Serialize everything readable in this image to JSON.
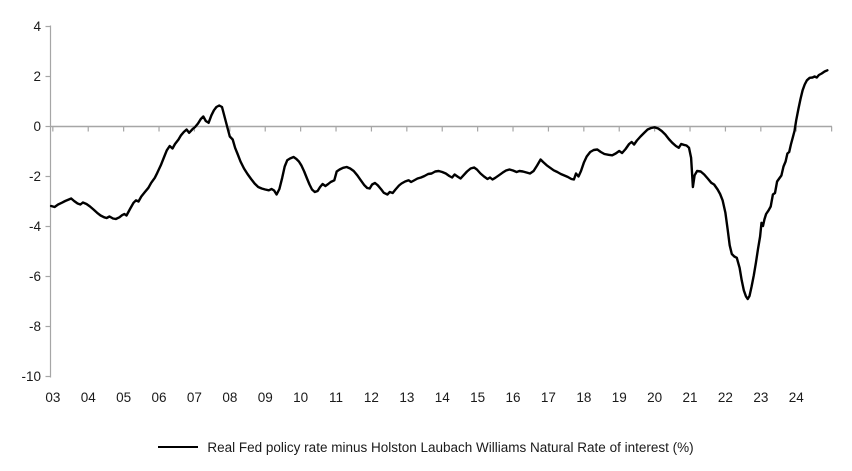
{
  "chart_data": {
    "type": "line",
    "title": "",
    "xlabel": "",
    "ylabel": "",
    "ylim": [
      -10,
      4
    ],
    "ytick_step": 2,
    "yticks": [
      "4",
      "2",
      "0",
      "-2",
      "-4",
      "-6",
      "-8",
      "-10"
    ],
    "ytick_values": [
      4,
      2,
      0,
      -2,
      -4,
      -6,
      -8,
      -10
    ],
    "xticks": [
      "03",
      "04",
      "05",
      "06",
      "07",
      "08",
      "09",
      "10",
      "11",
      "12",
      "13",
      "14",
      "15",
      "16",
      "17",
      "18",
      "19",
      "20",
      "21",
      "22",
      "23",
      "24"
    ],
    "xtick_years": [
      2003,
      2004,
      2005,
      2006,
      2007,
      2008,
      2009,
      2010,
      2011,
      2012,
      2013,
      2014,
      2015,
      2016,
      2017,
      2018,
      2019,
      2020,
      2021,
      2022,
      2023,
      2024
    ],
    "grid": false,
    "zero_line": true,
    "legend_position": "bottom",
    "colors": {
      "series": "#000000",
      "axis": "#a6a6a6",
      "zero_line": "#a6a6a6",
      "tick_label": "#1a1a1a",
      "background": "#ffffff"
    },
    "series": [
      {
        "name": "Real Fed policy rate minus Holston Laubach Williams Natural Rate of interest (%)",
        "points": [
          [
            2002.95,
            -3.18
          ],
          [
            2003.05,
            -3.22
          ],
          [
            2003.15,
            -3.12
          ],
          [
            2003.25,
            -3.05
          ],
          [
            2003.35,
            -2.98
          ],
          [
            2003.45,
            -2.92
          ],
          [
            2003.52,
            -2.88
          ],
          [
            2003.6,
            -2.98
          ],
          [
            2003.7,
            -3.08
          ],
          [
            2003.78,
            -3.12
          ],
          [
            2003.85,
            -3.04
          ],
          [
            2003.95,
            -3.1
          ],
          [
            2004.05,
            -3.2
          ],
          [
            2004.15,
            -3.32
          ],
          [
            2004.25,
            -3.45
          ],
          [
            2004.35,
            -3.56
          ],
          [
            2004.45,
            -3.63
          ],
          [
            2004.52,
            -3.66
          ],
          [
            2004.6,
            -3.6
          ],
          [
            2004.7,
            -3.68
          ],
          [
            2004.78,
            -3.7
          ],
          [
            2004.88,
            -3.63
          ],
          [
            2004.95,
            -3.55
          ],
          [
            2005.02,
            -3.5
          ],
          [
            2005.08,
            -3.56
          ],
          [
            2005.18,
            -3.3
          ],
          [
            2005.28,
            -3.05
          ],
          [
            2005.35,
            -2.95
          ],
          [
            2005.42,
            -3.0
          ],
          [
            2005.5,
            -2.8
          ],
          [
            2005.6,
            -2.62
          ],
          [
            2005.7,
            -2.45
          ],
          [
            2005.78,
            -2.25
          ],
          [
            2005.88,
            -2.05
          ],
          [
            2005.95,
            -1.85
          ],
          [
            2006.05,
            -1.55
          ],
          [
            2006.15,
            -1.2
          ],
          [
            2006.22,
            -0.95
          ],
          [
            2006.3,
            -0.78
          ],
          [
            2006.38,
            -0.88
          ],
          [
            2006.45,
            -0.7
          ],
          [
            2006.55,
            -0.52
          ],
          [
            2006.62,
            -0.35
          ],
          [
            2006.7,
            -0.22
          ],
          [
            2006.78,
            -0.12
          ],
          [
            2006.85,
            -0.25
          ],
          [
            2006.95,
            -0.1
          ],
          [
            2007.02,
            -0.02
          ],
          [
            2007.1,
            0.12
          ],
          [
            2007.18,
            0.3
          ],
          [
            2007.25,
            0.4
          ],
          [
            2007.32,
            0.22
          ],
          [
            2007.4,
            0.15
          ],
          [
            2007.48,
            0.45
          ],
          [
            2007.55,
            0.65
          ],
          [
            2007.62,
            0.78
          ],
          [
            2007.7,
            0.84
          ],
          [
            2007.78,
            0.78
          ],
          [
            2007.85,
            0.4
          ],
          [
            2007.92,
            0.02
          ],
          [
            2008.0,
            -0.4
          ],
          [
            2008.08,
            -0.52
          ],
          [
            2008.15,
            -0.85
          ],
          [
            2008.22,
            -1.1
          ],
          [
            2008.3,
            -1.4
          ],
          [
            2008.4,
            -1.68
          ],
          [
            2008.5,
            -1.9
          ],
          [
            2008.6,
            -2.1
          ],
          [
            2008.7,
            -2.28
          ],
          [
            2008.8,
            -2.42
          ],
          [
            2008.9,
            -2.48
          ],
          [
            2009.0,
            -2.52
          ],
          [
            2009.1,
            -2.55
          ],
          [
            2009.18,
            -2.5
          ],
          [
            2009.25,
            -2.56
          ],
          [
            2009.32,
            -2.72
          ],
          [
            2009.4,
            -2.5
          ],
          [
            2009.48,
            -2.05
          ],
          [
            2009.55,
            -1.6
          ],
          [
            2009.62,
            -1.35
          ],
          [
            2009.7,
            -1.28
          ],
          [
            2009.8,
            -1.22
          ],
          [
            2009.88,
            -1.3
          ],
          [
            2009.95,
            -1.4
          ],
          [
            2010.02,
            -1.55
          ],
          [
            2010.1,
            -1.8
          ],
          [
            2010.18,
            -2.08
          ],
          [
            2010.25,
            -2.32
          ],
          [
            2010.32,
            -2.52
          ],
          [
            2010.4,
            -2.62
          ],
          [
            2010.48,
            -2.58
          ],
          [
            2010.55,
            -2.42
          ],
          [
            2010.62,
            -2.3
          ],
          [
            2010.7,
            -2.38
          ],
          [
            2010.78,
            -2.3
          ],
          [
            2010.85,
            -2.22
          ],
          [
            2010.95,
            -2.15
          ],
          [
            2011.02,
            -1.8
          ],
          [
            2011.1,
            -1.72
          ],
          [
            2011.2,
            -1.65
          ],
          [
            2011.3,
            -1.62
          ],
          [
            2011.4,
            -1.68
          ],
          [
            2011.5,
            -1.78
          ],
          [
            2011.6,
            -1.95
          ],
          [
            2011.7,
            -2.15
          ],
          [
            2011.8,
            -2.35
          ],
          [
            2011.88,
            -2.46
          ],
          [
            2011.95,
            -2.48
          ],
          [
            2012.02,
            -2.32
          ],
          [
            2012.1,
            -2.26
          ],
          [
            2012.18,
            -2.35
          ],
          [
            2012.28,
            -2.52
          ],
          [
            2012.35,
            -2.65
          ],
          [
            2012.45,
            -2.72
          ],
          [
            2012.52,
            -2.62
          ],
          [
            2012.6,
            -2.66
          ],
          [
            2012.68,
            -2.52
          ],
          [
            2012.78,
            -2.36
          ],
          [
            2012.85,
            -2.28
          ],
          [
            2012.95,
            -2.2
          ],
          [
            2013.05,
            -2.15
          ],
          [
            2013.12,
            -2.22
          ],
          [
            2013.2,
            -2.16
          ],
          [
            2013.3,
            -2.08
          ],
          [
            2013.4,
            -2.04
          ],
          [
            2013.5,
            -1.98
          ],
          [
            2013.6,
            -1.9
          ],
          [
            2013.7,
            -1.88
          ],
          [
            2013.8,
            -1.8
          ],
          [
            2013.9,
            -1.78
          ],
          [
            2014.0,
            -1.82
          ],
          [
            2014.1,
            -1.88
          ],
          [
            2014.2,
            -1.98
          ],
          [
            2014.28,
            -2.04
          ],
          [
            2014.35,
            -1.92
          ],
          [
            2014.45,
            -2.02
          ],
          [
            2014.52,
            -2.08
          ],
          [
            2014.6,
            -1.95
          ],
          [
            2014.7,
            -1.8
          ],
          [
            2014.8,
            -1.68
          ],
          [
            2014.9,
            -1.64
          ],
          [
            2014.98,
            -1.72
          ],
          [
            2015.08,
            -1.88
          ],
          [
            2015.18,
            -2.0
          ],
          [
            2015.28,
            -2.1
          ],
          [
            2015.35,
            -2.04
          ],
          [
            2015.42,
            -2.12
          ],
          [
            2015.5,
            -2.05
          ],
          [
            2015.6,
            -1.95
          ],
          [
            2015.7,
            -1.85
          ],
          [
            2015.8,
            -1.76
          ],
          [
            2015.9,
            -1.72
          ],
          [
            2016.0,
            -1.76
          ],
          [
            2016.1,
            -1.82
          ],
          [
            2016.18,
            -1.78
          ],
          [
            2016.28,
            -1.8
          ],
          [
            2016.38,
            -1.84
          ],
          [
            2016.48,
            -1.88
          ],
          [
            2016.58,
            -1.78
          ],
          [
            2016.68,
            -1.56
          ],
          [
            2016.78,
            -1.32
          ],
          [
            2016.85,
            -1.42
          ],
          [
            2016.95,
            -1.55
          ],
          [
            2017.05,
            -1.65
          ],
          [
            2017.15,
            -1.75
          ],
          [
            2017.25,
            -1.82
          ],
          [
            2017.35,
            -1.9
          ],
          [
            2017.45,
            -1.96
          ],
          [
            2017.55,
            -2.02
          ],
          [
            2017.65,
            -2.1
          ],
          [
            2017.72,
            -2.12
          ],
          [
            2017.78,
            -1.88
          ],
          [
            2017.85,
            -2.0
          ],
          [
            2017.92,
            -1.78
          ],
          [
            2018.0,
            -1.45
          ],
          [
            2018.08,
            -1.2
          ],
          [
            2018.18,
            -1.02
          ],
          [
            2018.28,
            -0.94
          ],
          [
            2018.38,
            -0.92
          ],
          [
            2018.48,
            -1.02
          ],
          [
            2018.58,
            -1.1
          ],
          [
            2018.7,
            -1.13
          ],
          [
            2018.8,
            -1.15
          ],
          [
            2018.9,
            -1.08
          ],
          [
            2019.0,
            -0.98
          ],
          [
            2019.08,
            -1.06
          ],
          [
            2019.18,
            -0.9
          ],
          [
            2019.28,
            -0.7
          ],
          [
            2019.35,
            -0.62
          ],
          [
            2019.42,
            -0.72
          ],
          [
            2019.5,
            -0.56
          ],
          [
            2019.6,
            -0.4
          ],
          [
            2019.7,
            -0.26
          ],
          [
            2019.8,
            -0.12
          ],
          [
            2019.9,
            -0.06
          ],
          [
            2020.0,
            -0.03
          ],
          [
            2020.1,
            -0.08
          ],
          [
            2020.2,
            -0.18
          ],
          [
            2020.3,
            -0.32
          ],
          [
            2020.4,
            -0.5
          ],
          [
            2020.5,
            -0.65
          ],
          [
            2020.6,
            -0.78
          ],
          [
            2020.68,
            -0.85
          ],
          [
            2020.75,
            -0.7
          ],
          [
            2020.82,
            -0.73
          ],
          [
            2020.9,
            -0.76
          ],
          [
            2020.97,
            -0.85
          ],
          [
            2021.03,
            -1.25
          ],
          [
            2021.08,
            -2.42
          ],
          [
            2021.13,
            -1.95
          ],
          [
            2021.2,
            -1.78
          ],
          [
            2021.3,
            -1.8
          ],
          [
            2021.4,
            -1.92
          ],
          [
            2021.5,
            -2.08
          ],
          [
            2021.6,
            -2.25
          ],
          [
            2021.68,
            -2.32
          ],
          [
            2021.78,
            -2.52
          ],
          [
            2021.85,
            -2.7
          ],
          [
            2021.92,
            -2.95
          ],
          [
            2022.0,
            -3.45
          ],
          [
            2022.06,
            -4.1
          ],
          [
            2022.12,
            -4.75
          ],
          [
            2022.18,
            -5.1
          ],
          [
            2022.25,
            -5.2
          ],
          [
            2022.32,
            -5.25
          ],
          [
            2022.4,
            -5.65
          ],
          [
            2022.46,
            -6.15
          ],
          [
            2022.52,
            -6.55
          ],
          [
            2022.58,
            -6.8
          ],
          [
            2022.63,
            -6.9
          ],
          [
            2022.68,
            -6.78
          ],
          [
            2022.74,
            -6.4
          ],
          [
            2022.8,
            -5.95
          ],
          [
            2022.86,
            -5.45
          ],
          [
            2022.92,
            -4.9
          ],
          [
            2022.98,
            -4.4
          ],
          [
            2023.02,
            -3.85
          ],
          [
            2023.06,
            -3.98
          ],
          [
            2023.1,
            -3.72
          ],
          [
            2023.15,
            -3.5
          ],
          [
            2023.22,
            -3.35
          ],
          [
            2023.28,
            -3.2
          ],
          [
            2023.34,
            -2.72
          ],
          [
            2023.4,
            -2.66
          ],
          [
            2023.46,
            -2.2
          ],
          [
            2023.52,
            -2.08
          ],
          [
            2023.58,
            -1.96
          ],
          [
            2023.64,
            -1.6
          ],
          [
            2023.7,
            -1.4
          ],
          [
            2023.75,
            -1.08
          ],
          [
            2023.8,
            -1.02
          ],
          [
            2023.85,
            -0.72
          ],
          [
            2023.9,
            -0.45
          ],
          [
            2023.95,
            -0.18
          ],
          [
            2024.0,
            0.25
          ],
          [
            2024.06,
            0.7
          ],
          [
            2024.12,
            1.1
          ],
          [
            2024.18,
            1.45
          ],
          [
            2024.24,
            1.68
          ],
          [
            2024.3,
            1.85
          ],
          [
            2024.38,
            1.95
          ],
          [
            2024.46,
            1.96
          ],
          [
            2024.52,
            2.0
          ],
          [
            2024.58,
            1.96
          ],
          [
            2024.64,
            2.06
          ],
          [
            2024.72,
            2.12
          ],
          [
            2024.8,
            2.2
          ],
          [
            2024.88,
            2.25
          ]
        ]
      }
    ]
  },
  "legend": {
    "label": "Real Fed policy rate minus Holston Laubach Williams Natural Rate of interest (%)"
  }
}
